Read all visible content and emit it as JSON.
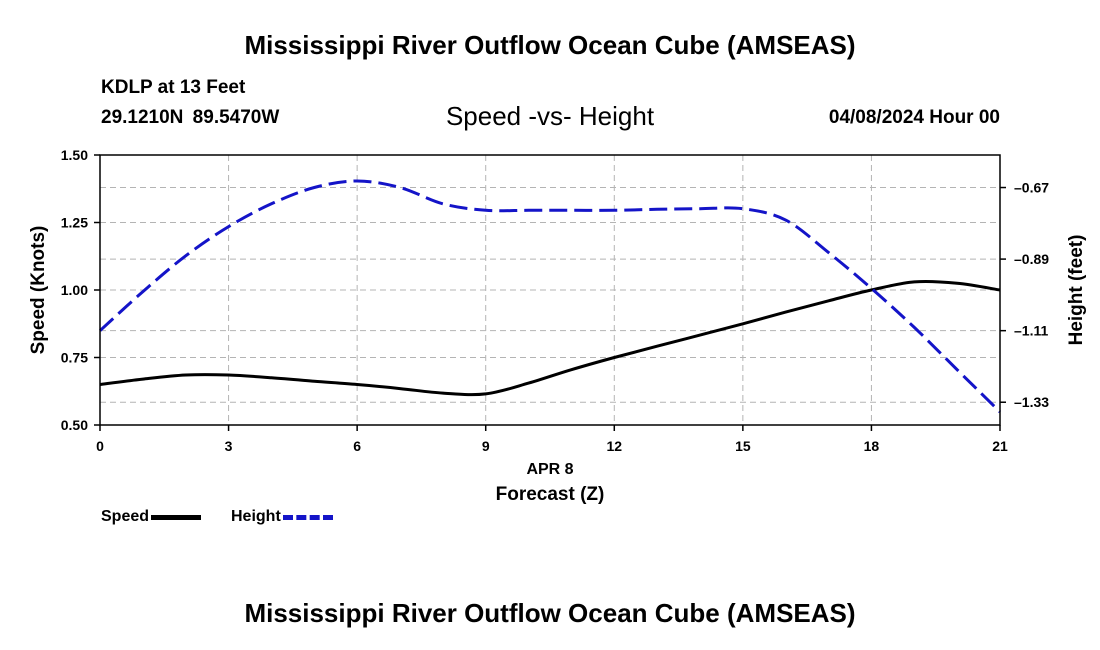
{
  "header": {
    "title": "Mississippi River Outflow Ocean Cube (AMSEAS)",
    "station": "KDLP at 13 Feet",
    "coordinates": "29.1210N  89.5470W",
    "chart_title": "Speed -vs- Height",
    "date": "04/08/2024 Hour 00"
  },
  "footer": {
    "title": "Mississippi River Outflow Ocean Cube (AMSEAS)"
  },
  "legend": {
    "speed_label": "Speed",
    "height_label": "Height",
    "speed_color": "#000000",
    "height_color": "#1414c8"
  },
  "chart_data": {
    "type": "line",
    "title": "Speed -vs- Height",
    "xlabel": "Forecast (Z)",
    "xsublabel": "APR 8",
    "ylabel": "Speed (Knots)",
    "y2label": "Height (feet)",
    "xlim": [
      0,
      21
    ],
    "ylim": [
      0.5,
      1.5
    ],
    "y2lim": [
      -1.4,
      -0.57
    ],
    "x_ticks": [
      0,
      3,
      6,
      9,
      12,
      15,
      18,
      21
    ],
    "y_ticks": [
      "0.50",
      "0.75",
      "1.00",
      "1.25",
      "1.50"
    ],
    "y2_ticks": [
      "-0.67",
      "-0.89",
      "-1.11",
      "-1.33"
    ],
    "grid": true,
    "series": [
      {
        "name": "Speed",
        "axis": "left",
        "style": "solid",
        "x": [
          0,
          1,
          2,
          3,
          4,
          5,
          6,
          7,
          8,
          9,
          10,
          11,
          12,
          13,
          14,
          15,
          16,
          17,
          18,
          19,
          20,
          21
        ],
        "values": [
          0.65,
          0.67,
          0.685,
          0.685,
          0.675,
          0.662,
          0.65,
          0.635,
          0.618,
          0.615,
          0.655,
          0.705,
          0.75,
          0.792,
          0.833,
          0.875,
          0.918,
          0.96,
          1.0,
          1.03,
          1.025,
          1.0
        ]
      },
      {
        "name": "Height",
        "axis": "right",
        "style": "dashed",
        "x": [
          0,
          1,
          2,
          3,
          4,
          5,
          6,
          7,
          8,
          9,
          10,
          11,
          12,
          13,
          14,
          15,
          16,
          17,
          18,
          19,
          20,
          21
        ],
        "values": [
          -1.11,
          -0.99,
          -0.88,
          -0.79,
          -0.72,
          -0.67,
          -0.65,
          -0.67,
          -0.72,
          -0.74,
          -0.74,
          -0.74,
          -0.74,
          -0.737,
          -0.735,
          -0.735,
          -0.77,
          -0.87,
          -0.98,
          -1.1,
          -1.23,
          -1.36
        ]
      }
    ]
  }
}
